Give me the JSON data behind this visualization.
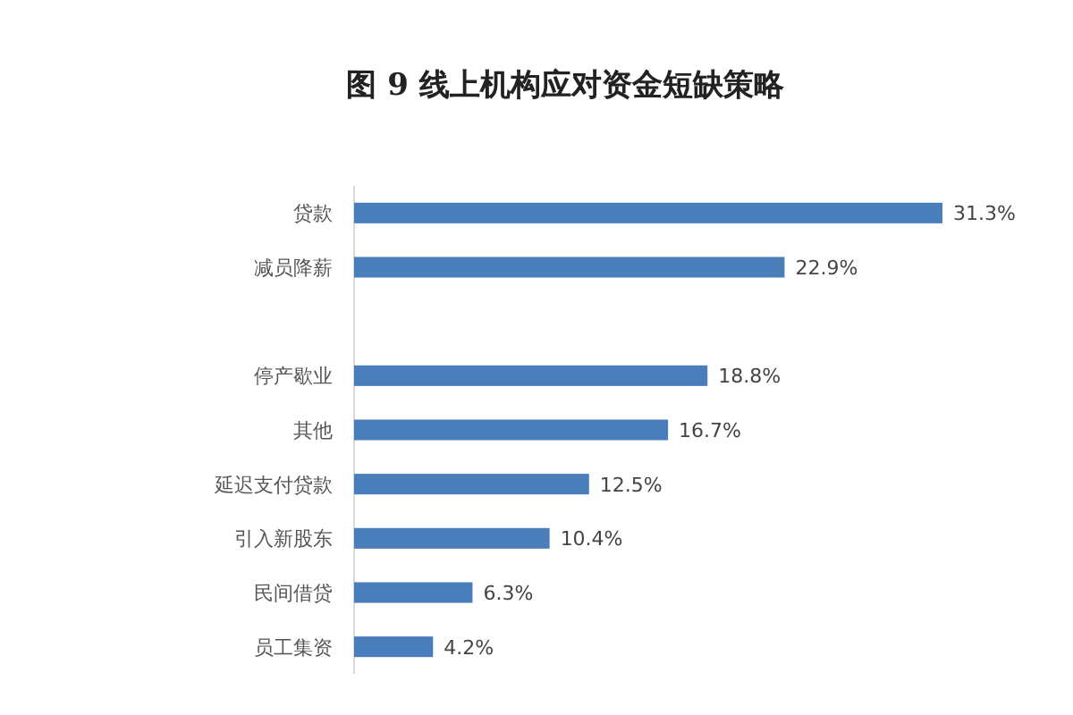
{
  "chart_data": {
    "type": "bar",
    "orientation": "horizontal",
    "title": "图 9  线上机构应对资金短缺策略",
    "categories": [
      "贷款",
      "减员降薪",
      null,
      "停产歇业",
      "其他",
      "延迟支付贷款",
      "引入新股东",
      "民间借贷",
      "员工集资"
    ],
    "values": [
      31.3,
      22.9,
      null,
      18.8,
      16.7,
      12.5,
      10.4,
      6.3,
      4.2
    ],
    "value_labels": [
      "31.3%",
      "22.9%",
      null,
      "18.8%",
      "16.7%",
      "12.5%",
      "10.4%",
      "6.3%",
      "4.2%"
    ],
    "color": "#4a7ebb",
    "tick_labels": "y"
  }
}
